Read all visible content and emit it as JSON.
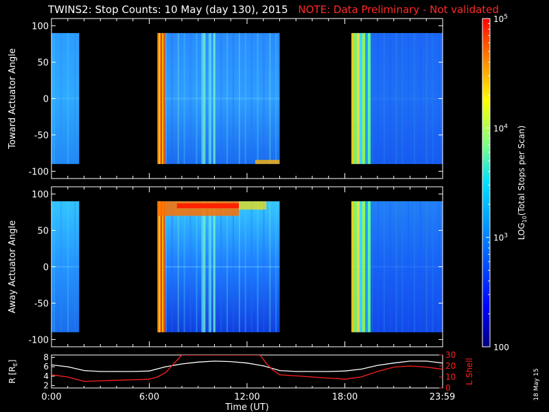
{
  "title": {
    "main": "TWINS2: Stop Counts: 10 May (day 130), 2015",
    "note": "NOTE: Data Preliminary - Not validated"
  },
  "stamp": "18 May 15",
  "colorbar": {
    "label_prefix": "LOG",
    "label_sub": "10",
    "label_suffix": "(Total Stops per Scan)",
    "ticks": [
      {
        "base": "10",
        "exp": "5",
        "value": 100000
      },
      {
        "base": "10",
        "exp": "4",
        "value": 10000
      },
      {
        "base": "10",
        "exp": "3",
        "value": 1000
      },
      {
        "base": "100",
        "exp": "",
        "value": 100
      }
    ],
    "range": [
      100,
      100000
    ],
    "scale": "log"
  },
  "chart_data": [
    {
      "type": "heatmap",
      "ylabel": "Toward Actuator Angle",
      "ylim": [
        -110,
        110
      ],
      "yticks": [
        "100",
        "50",
        "0",
        "-50",
        "-100"
      ],
      "ytick_values": [
        100,
        50,
        0,
        -50,
        -100
      ],
      "data_angle_range": [
        -90,
        90
      ],
      "xlim": [
        0,
        24
      ],
      "data_intervals_hours": [
        [
          0.0,
          1.7
        ],
        [
          6.5,
          14.0
        ],
        [
          18.4,
          23.98
        ]
      ],
      "saturated_band_hours": [
        6.5,
        7.0
      ],
      "grid": false
    },
    {
      "type": "heatmap",
      "ylabel": "Away Actuator Angle",
      "ylim": [
        -110,
        110
      ],
      "yticks": [
        "100",
        "50",
        "0",
        "-50",
        "-100"
      ],
      "ytick_values": [
        100,
        50,
        0,
        -50,
        -100
      ],
      "data_angle_range": [
        -90,
        90
      ],
      "xlim": [
        0,
        24
      ],
      "data_intervals_hours": [
        [
          0.0,
          1.7
        ],
        [
          6.5,
          14.0
        ],
        [
          18.4,
          23.98
        ]
      ],
      "high_count_region": {
        "hours": [
          6.5,
          11.5
        ],
        "angle": [
          70,
          90
        ]
      },
      "grid": false
    },
    {
      "type": "line",
      "xlabel": "Time (UT)",
      "xticks": [
        "0:00",
        "6:00",
        "12:00",
        "18:00",
        "23:59"
      ],
      "xtick_values": [
        0,
        6,
        12,
        18,
        23.98
      ],
      "xlim": [
        0,
        24
      ],
      "ylabel_left": "R [R",
      "ylabel_left_sub": "E",
      "ylabel_left_end": "]",
      "yticks_left": [
        "8",
        "6",
        "4",
        "2"
      ],
      "ylim_left": [
        1.5,
        8.5
      ],
      "ylabel_right": "L Shell",
      "yticks_right": [
        "30",
        "20",
        "10",
        "0"
      ],
      "ylim_right": [
        0,
        30
      ],
      "series": [
        {
          "axis": "left",
          "color": "#ffffff",
          "x": [
            0,
            1,
            2,
            3,
            4,
            5,
            6,
            7,
            8,
            9,
            10,
            11,
            12,
            13,
            14,
            15,
            16,
            17,
            18,
            19,
            20,
            21,
            22,
            23,
            24
          ],
          "y": [
            6.4,
            6.0,
            5.2,
            5.0,
            5.0,
            5.0,
            5.1,
            6.0,
            6.6,
            7.0,
            7.2,
            7.1,
            6.8,
            6.2,
            5.2,
            5.0,
            5.0,
            5.0,
            5.1,
            5.5,
            6.3,
            6.8,
            7.2,
            7.2,
            6.8
          ]
        },
        {
          "axis": "right",
          "color": "#ff2020",
          "x": [
            0,
            1,
            2,
            3,
            4,
            5,
            6,
            6.5,
            7,
            7.5,
            8,
            12.8,
            13.2,
            13.6,
            14,
            15,
            16,
            17,
            18,
            19,
            20,
            21,
            22,
            23,
            24
          ],
          "y": [
            12,
            10,
            6,
            6.5,
            7,
            7.5,
            8,
            10,
            14,
            22,
            30,
            30,
            22,
            16,
            12,
            11,
            10,
            9,
            8,
            10,
            15,
            19,
            20,
            19,
            17
          ]
        }
      ]
    }
  ]
}
